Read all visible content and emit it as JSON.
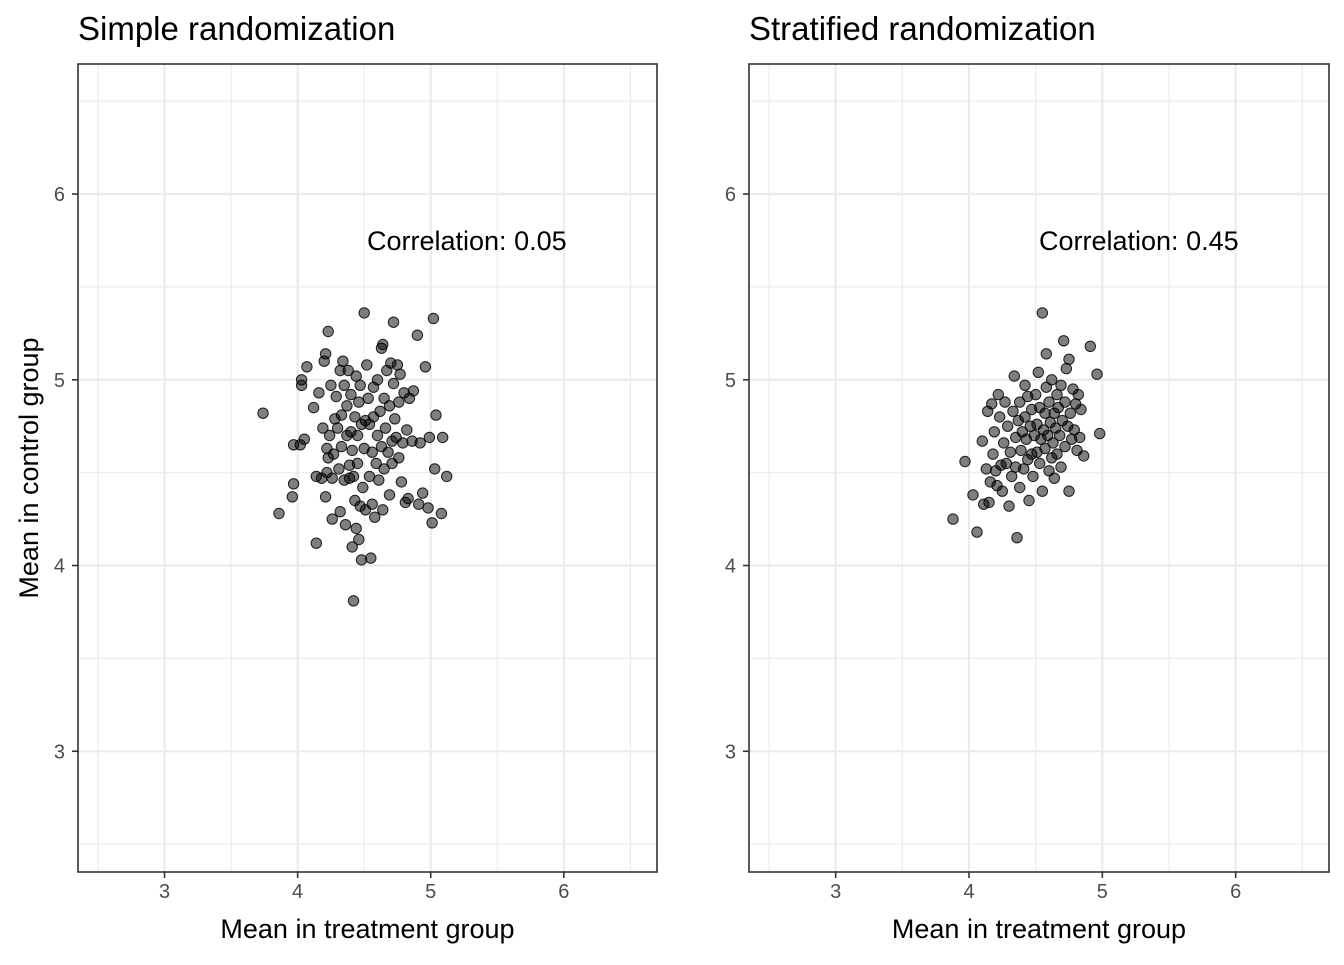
{
  "chart_data": [
    {
      "type": "scatter",
      "title": "Simple randomization",
      "xlabel": "Mean in treatment group",
      "ylabel": "Mean in control group",
      "xlim": [
        2.35,
        6.7
      ],
      "ylim": [
        2.35,
        6.7
      ],
      "xticks": [
        3,
        4,
        5,
        6
      ],
      "yticks": [
        3,
        4,
        5,
        6
      ],
      "grid": true,
      "annotation": {
        "text": "Correlation: 0.05"
      },
      "points": [
        [
          3.74,
          4.82
        ],
        [
          3.86,
          4.28
        ],
        [
          3.96,
          4.37
        ],
        [
          3.97,
          4.44
        ],
        [
          3.97,
          4.65
        ],
        [
          4.02,
          4.65
        ],
        [
          4.03,
          4.97
        ],
        [
          4.03,
          5.0
        ],
        [
          4.05,
          4.68
        ],
        [
          4.07,
          5.07
        ],
        [
          4.12,
          4.85
        ],
        [
          4.14,
          4.12
        ],
        [
          4.14,
          4.48
        ],
        [
          4.16,
          4.93
        ],
        [
          4.18,
          4.47
        ],
        [
          4.19,
          4.74
        ],
        [
          4.2,
          5.1
        ],
        [
          4.21,
          5.14
        ],
        [
          4.21,
          4.37
        ],
        [
          4.22,
          4.5
        ],
        [
          4.22,
          4.63
        ],
        [
          4.23,
          5.26
        ],
        [
          4.23,
          4.58
        ],
        [
          4.24,
          4.7
        ],
        [
          4.25,
          4.97
        ],
        [
          4.26,
          4.47
        ],
        [
          4.26,
          4.25
        ],
        [
          4.27,
          4.6
        ],
        [
          4.28,
          4.79
        ],
        [
          4.29,
          4.91
        ],
        [
          4.3,
          4.74
        ],
        [
          4.31,
          4.52
        ],
        [
          4.32,
          5.05
        ],
        [
          4.32,
          4.29
        ],
        [
          4.33,
          4.81
        ],
        [
          4.33,
          4.64
        ],
        [
          4.34,
          5.1
        ],
        [
          4.35,
          4.46
        ],
        [
          4.35,
          4.97
        ],
        [
          4.36,
          4.22
        ],
        [
          4.37,
          4.7
        ],
        [
          4.37,
          4.86
        ],
        [
          4.38,
          5.05
        ],
        [
          4.39,
          4.54
        ],
        [
          4.39,
          4.47
        ],
        [
          4.4,
          4.72
        ],
        [
          4.4,
          4.92
        ],
        [
          4.41,
          4.1
        ],
        [
          4.41,
          4.62
        ],
        [
          4.42,
          4.48
        ],
        [
          4.42,
          3.81
        ],
        [
          4.43,
          4.35
        ],
        [
          4.43,
          4.8
        ],
        [
          4.44,
          5.02
        ],
        [
          4.44,
          4.2
        ],
        [
          4.45,
          4.7
        ],
        [
          4.45,
          4.55
        ],
        [
          4.46,
          4.14
        ],
        [
          4.46,
          4.88
        ],
        [
          4.47,
          4.32
        ],
        [
          4.47,
          4.97
        ],
        [
          4.48,
          4.76
        ],
        [
          4.48,
          4.03
        ],
        [
          4.49,
          4.42
        ],
        [
          4.5,
          5.36
        ],
        [
          4.5,
          4.63
        ],
        [
          4.51,
          4.3
        ],
        [
          4.51,
          4.78
        ],
        [
          4.52,
          5.08
        ],
        [
          4.53,
          4.9
        ],
        [
          4.54,
          4.48
        ],
        [
          4.54,
          4.76
        ],
        [
          4.55,
          4.04
        ],
        [
          4.56,
          4.61
        ],
        [
          4.56,
          4.33
        ],
        [
          4.57,
          4.96
        ],
        [
          4.57,
          4.8
        ],
        [
          4.58,
          4.26
        ],
        [
          4.59,
          4.55
        ],
        [
          4.6,
          4.7
        ],
        [
          4.6,
          5.0
        ],
        [
          4.61,
          4.46
        ],
        [
          4.62,
          4.83
        ],
        [
          4.63,
          5.17
        ],
        [
          4.63,
          4.64
        ],
        [
          4.64,
          5.19
        ],
        [
          4.64,
          4.3
        ],
        [
          4.65,
          4.9
        ],
        [
          4.65,
          4.52
        ],
        [
          4.66,
          4.74
        ],
        [
          4.67,
          5.05
        ],
        [
          4.68,
          4.61
        ],
        [
          4.69,
          4.38
        ],
        [
          4.69,
          4.86
        ],
        [
          4.7,
          5.09
        ],
        [
          4.71,
          4.67
        ],
        [
          4.71,
          4.55
        ],
        [
          4.72,
          5.31
        ],
        [
          4.72,
          4.98
        ],
        [
          4.73,
          4.79
        ],
        [
          4.74,
          4.69
        ],
        [
          4.75,
          5.08
        ],
        [
          4.76,
          4.58
        ],
        [
          4.76,
          4.88
        ],
        [
          4.77,
          5.03
        ],
        [
          4.78,
          4.45
        ],
        [
          4.79,
          4.66
        ],
        [
          4.8,
          4.93
        ],
        [
          4.81,
          4.34
        ],
        [
          4.82,
          4.73
        ],
        [
          4.83,
          4.36
        ],
        [
          4.84,
          4.9
        ],
        [
          4.86,
          4.67
        ],
        [
          4.87,
          4.94
        ],
        [
          4.9,
          5.24
        ],
        [
          4.91,
          4.33
        ],
        [
          4.92,
          4.66
        ],
        [
          4.94,
          4.39
        ],
        [
          4.96,
          5.07
        ],
        [
          4.98,
          4.31
        ],
        [
          4.99,
          4.69
        ],
        [
          5.01,
          4.23
        ],
        [
          5.02,
          5.33
        ],
        [
          5.03,
          4.52
        ],
        [
          5.04,
          4.81
        ],
        [
          5.08,
          4.28
        ],
        [
          5.09,
          4.69
        ],
        [
          5.12,
          4.48
        ]
      ]
    },
    {
      "type": "scatter",
      "title": "Stratified randomization",
      "xlabel": "Mean in treatment group",
      "ylabel": "",
      "xlim": [
        2.35,
        6.7
      ],
      "ylim": [
        2.35,
        6.7
      ],
      "xticks": [
        3,
        4,
        5,
        6
      ],
      "yticks": [
        3,
        4,
        5,
        6
      ],
      "grid": true,
      "annotation": {
        "text": "Correlation: 0.45"
      },
      "points": [
        [
          3.88,
          4.25
        ],
        [
          3.97,
          4.56
        ],
        [
          4.03,
          4.38
        ],
        [
          4.06,
          4.18
        ],
        [
          4.1,
          4.67
        ],
        [
          4.11,
          4.33
        ],
        [
          4.13,
          4.52
        ],
        [
          4.14,
          4.83
        ],
        [
          4.15,
          4.34
        ],
        [
          4.16,
          4.45
        ],
        [
          4.17,
          4.87
        ],
        [
          4.18,
          4.6
        ],
        [
          4.19,
          4.72
        ],
        [
          4.2,
          4.51
        ],
        [
          4.21,
          4.43
        ],
        [
          4.22,
          4.92
        ],
        [
          4.23,
          4.8
        ],
        [
          4.24,
          4.54
        ],
        [
          4.25,
          4.4
        ],
        [
          4.26,
          4.66
        ],
        [
          4.27,
          4.88
        ],
        [
          4.28,
          4.55
        ],
        [
          4.29,
          4.75
        ],
        [
          4.3,
          4.32
        ],
        [
          4.31,
          4.61
        ],
        [
          4.32,
          4.48
        ],
        [
          4.33,
          4.83
        ],
        [
          4.34,
          5.02
        ],
        [
          4.35,
          4.69
        ],
        [
          4.35,
          4.53
        ],
        [
          4.36,
          4.15
        ],
        [
          4.37,
          4.78
        ],
        [
          4.38,
          4.42
        ],
        [
          4.38,
          4.88
        ],
        [
          4.39,
          4.62
        ],
        [
          4.4,
          4.72
        ],
        [
          4.41,
          4.52
        ],
        [
          4.42,
          4.97
        ],
        [
          4.42,
          4.8
        ],
        [
          4.43,
          4.68
        ],
        [
          4.44,
          4.57
        ],
        [
          4.44,
          4.91
        ],
        [
          4.45,
          4.35
        ],
        [
          4.46,
          4.75
        ],
        [
          4.47,
          4.6
        ],
        [
          4.47,
          4.84
        ],
        [
          4.48,
          4.48
        ],
        [
          4.49,
          4.7
        ],
        [
          4.5,
          4.92
        ],
        [
          4.51,
          4.61
        ],
        [
          4.51,
          4.76
        ],
        [
          4.52,
          5.04
        ],
        [
          4.53,
          4.55
        ],
        [
          4.53,
          4.85
        ],
        [
          4.54,
          4.68
        ],
        [
          4.55,
          4.4
        ],
        [
          4.55,
          5.36
        ],
        [
          4.56,
          4.73
        ],
        [
          4.57,
          4.82
        ],
        [
          4.57,
          4.63
        ],
        [
          4.58,
          5.14
        ],
        [
          4.58,
          4.96
        ],
        [
          4.59,
          4.7
        ],
        [
          4.6,
          4.51
        ],
        [
          4.6,
          4.88
        ],
        [
          4.61,
          4.77
        ],
        [
          4.62,
          4.58
        ],
        [
          4.62,
          5.0
        ],
        [
          4.63,
          4.66
        ],
        [
          4.64,
          4.82
        ],
        [
          4.64,
          4.47
        ],
        [
          4.65,
          4.74
        ],
        [
          4.66,
          4.92
        ],
        [
          4.66,
          4.6
        ],
        [
          4.67,
          4.85
        ],
        [
          4.68,
          4.7
        ],
        [
          4.69,
          4.53
        ],
        [
          4.69,
          4.97
        ],
        [
          4.7,
          4.78
        ],
        [
          4.71,
          5.21
        ],
        [
          4.72,
          4.64
        ],
        [
          4.72,
          4.88
        ],
        [
          4.73,
          5.06
        ],
        [
          4.74,
          4.75
        ],
        [
          4.75,
          4.4
        ],
        [
          4.75,
          5.11
        ],
        [
          4.76,
          4.82
        ],
        [
          4.77,
          4.68
        ],
        [
          4.78,
          4.95
        ],
        [
          4.79,
          4.73
        ],
        [
          4.8,
          4.87
        ],
        [
          4.81,
          4.62
        ],
        [
          4.82,
          4.92
        ],
        [
          4.83,
          4.69
        ],
        [
          4.84,
          4.84
        ],
        [
          4.86,
          4.59
        ],
        [
          4.91,
          5.18
        ],
        [
          4.96,
          5.03
        ],
        [
          4.98,
          4.71
        ]
      ]
    }
  ]
}
